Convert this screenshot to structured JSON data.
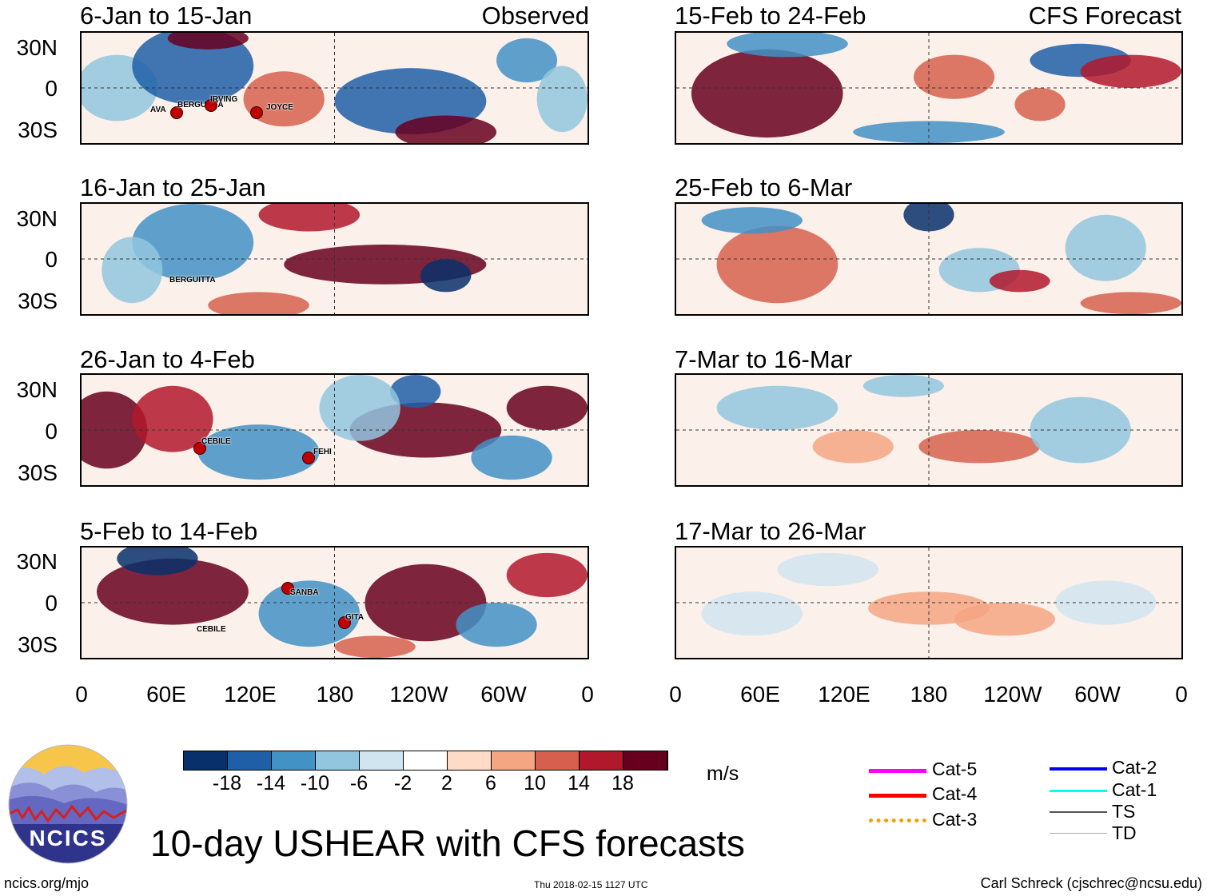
{
  "figure_title": "10-day USHEAR with CFS forecasts",
  "column_headers": {
    "observed": "Observed",
    "forecast": "CFS Forecast"
  },
  "panels_left": [
    {
      "period": "6-Jan to 15-Jan"
    },
    {
      "period": "16-Jan to 25-Jan"
    },
    {
      "period": "26-Jan to 4-Feb"
    },
    {
      "period": "5-Feb to 14-Feb"
    }
  ],
  "panels_right": [
    {
      "period": "15-Feb to 24-Feb"
    },
    {
      "period": "25-Feb to 6-Mar"
    },
    {
      "period": "7-Mar to 16-Mar"
    },
    {
      "period": "17-Mar to 26-Mar"
    }
  ],
  "lat_labels": [
    "30N",
    "0",
    "30S"
  ],
  "lon_labels": [
    "0",
    "60E",
    "120E",
    "180",
    "120W",
    "60W",
    "0"
  ],
  "storms": {
    "p1": [
      "AVA",
      "BERGUITTA",
      "IRVING",
      "JOYCE"
    ],
    "p2": [
      "BERGUITTA"
    ],
    "p3": [
      "CEBILE",
      "FEHI"
    ],
    "p4": [
      "SANBA",
      "CEBILE",
      "GITA"
    ]
  },
  "colorbar": {
    "unit": "m/s",
    "tick_labels": [
      "-18",
      "-14",
      "-10",
      "-6",
      "-2",
      "2",
      "6",
      "10",
      "14",
      "18"
    ],
    "colors": [
      "#08306b",
      "#1f5fa8",
      "#4292c6",
      "#92c5de",
      "#d1e5f0",
      "#ffffff",
      "#fddbc7",
      "#f4a582",
      "#d6604d",
      "#b2182b",
      "#67001f"
    ]
  },
  "legend": [
    {
      "label": "Cat-5",
      "color": "#ff00ff"
    },
    {
      "label": "Cat-4",
      "color": "#ff0000"
    },
    {
      "label": "Cat-3",
      "color": "#f0a000"
    },
    {
      "label": "Cat-2",
      "color": "#0000ff"
    },
    {
      "label": "Cat-1",
      "color": "#00ffff"
    },
    {
      "label": "TS",
      "color": "#555555"
    },
    {
      "label": "TD",
      "color": "#aaaaaa"
    }
  ],
  "logo_text": "NCICS",
  "footer": {
    "url": "ncics.org/mjo",
    "timestamp": "Thu 2018-02-15 1127 UTC",
    "author": "Carl Schreck (cjschrec@ncsu.edu)"
  }
}
